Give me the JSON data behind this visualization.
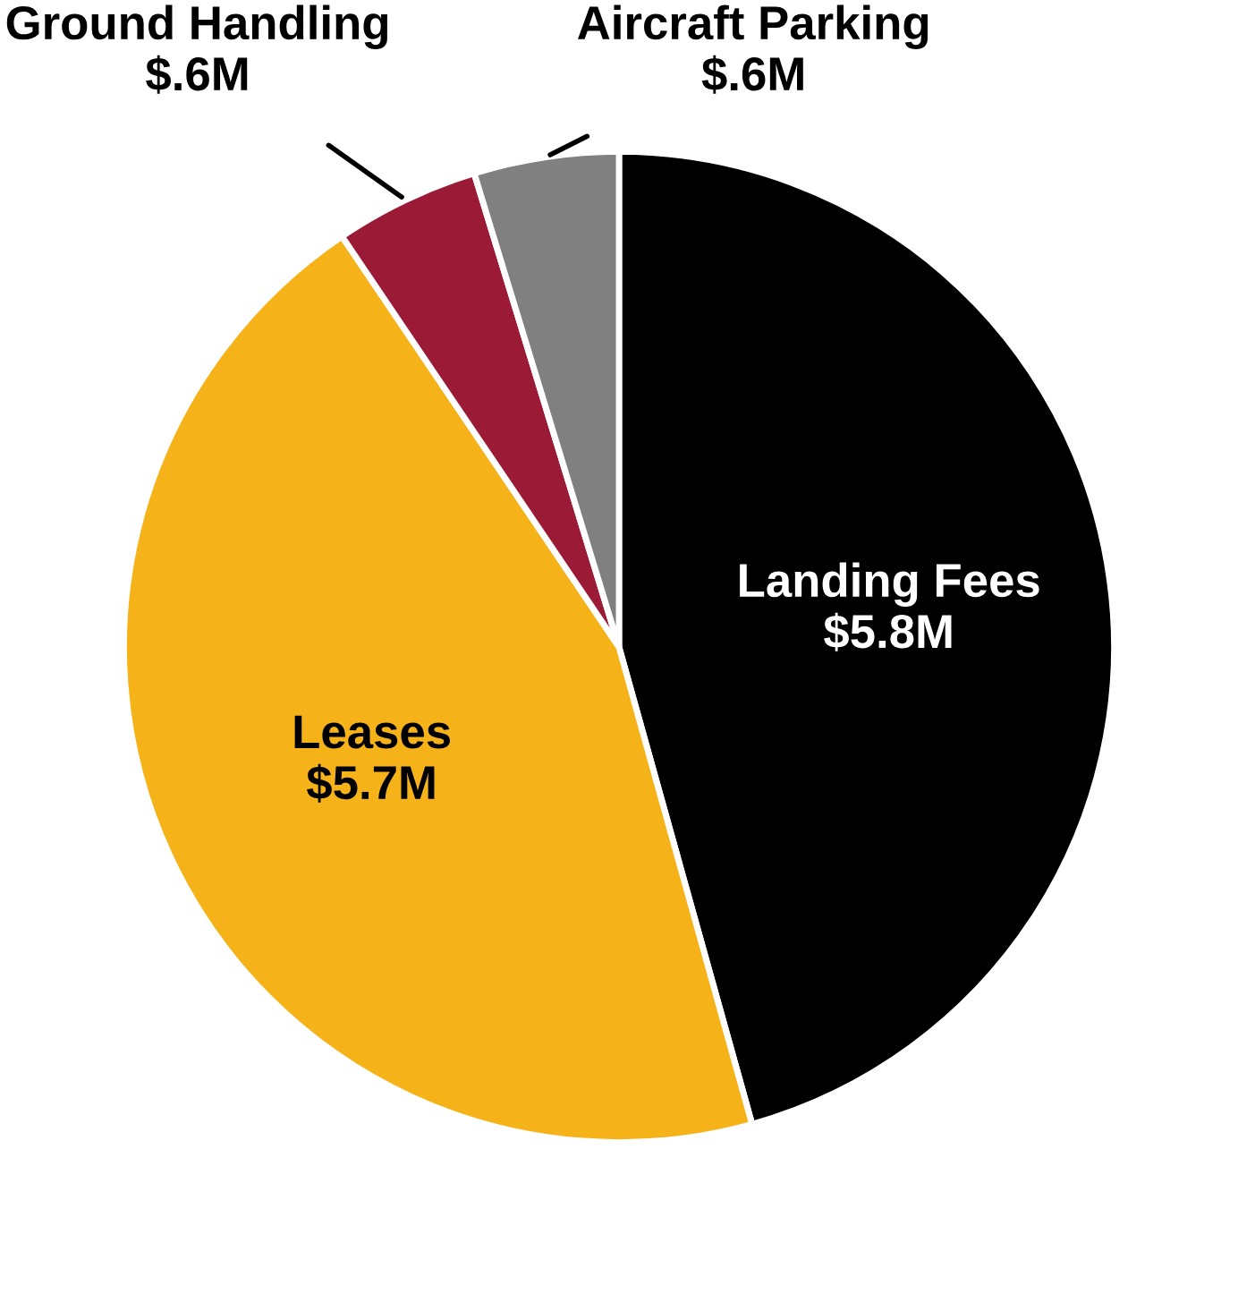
{
  "chart_data": {
    "type": "pie",
    "categories": [
      "Landing Fees",
      "Leases",
      "Ground Handling",
      "Aircraft Parking"
    ],
    "values": [
      5.8,
      5.7,
      0.6,
      0.6
    ],
    "value_labels": [
      "$5.8M",
      "$5.7M",
      "$.6M",
      "$.6M"
    ],
    "colors": [
      "#000000",
      "#f5b319",
      "#9b1b36",
      "#808080"
    ],
    "legend": false
  }
}
